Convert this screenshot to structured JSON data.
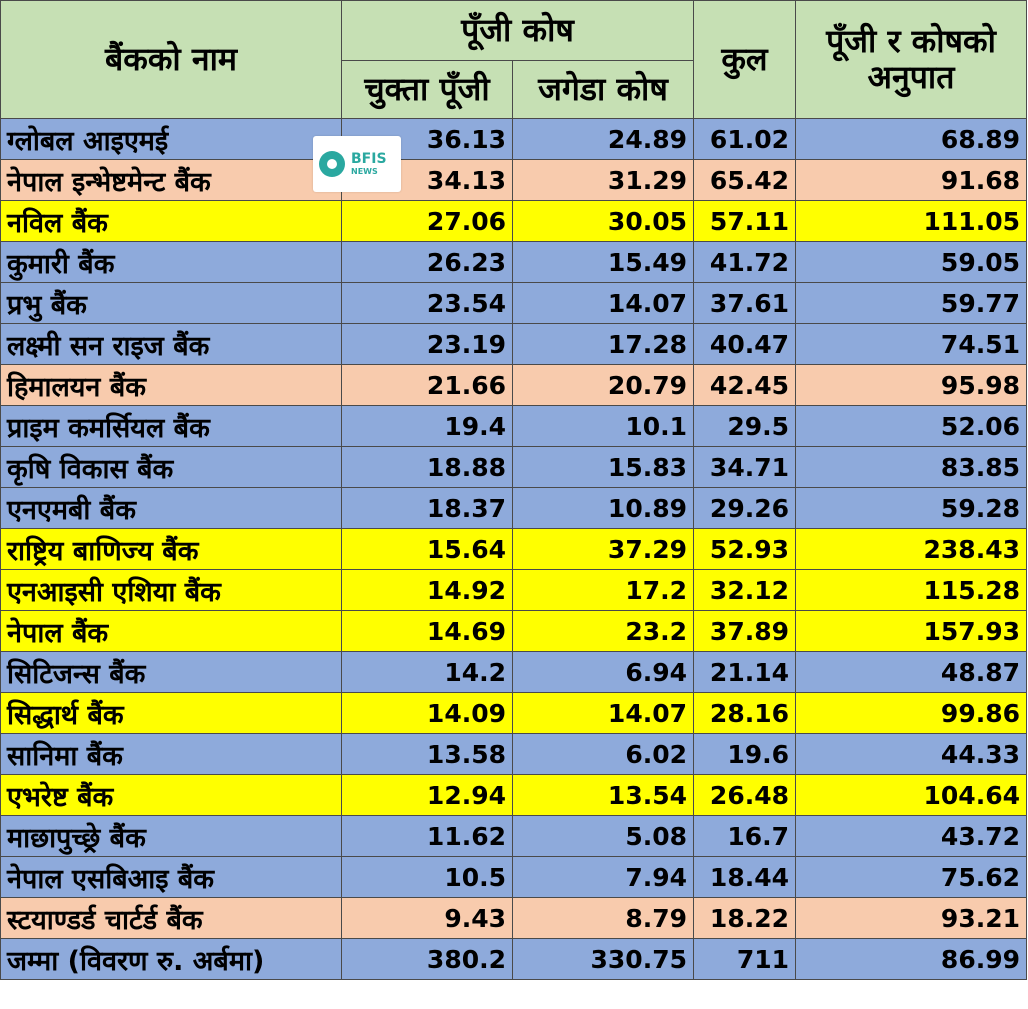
{
  "headers": {
    "name": "बैंकको नाम",
    "capital_fund": "पूँजी कोष",
    "paid_up": "चुक्ता पूँजी",
    "reserve": "जगेडा कोष",
    "total": "कुल",
    "ratio_line1": "पूँजी र कोषको",
    "ratio_line2": "अनुपात"
  },
  "rows": [
    {
      "name": "ग्लोबल आइएमई",
      "paid": "36.13",
      "reserve": "24.89",
      "total": "61.02",
      "ratio": "68.89",
      "color": "blue"
    },
    {
      "name": "नेपाल इन्भेष्टमेन्ट बैंक",
      "paid": "34.13",
      "reserve": "31.29",
      "total": "65.42",
      "ratio": "91.68",
      "color": "peach"
    },
    {
      "name": "नविल बैंक",
      "paid": "27.06",
      "reserve": "30.05",
      "total": "57.11",
      "ratio": "111.05",
      "color": "yellow"
    },
    {
      "name": "कुमारी बैंक",
      "paid": "26.23",
      "reserve": "15.49",
      "total": "41.72",
      "ratio": "59.05",
      "color": "blue"
    },
    {
      "name": "प्रभु बैंक",
      "paid": "23.54",
      "reserve": "14.07",
      "total": "37.61",
      "ratio": "59.77",
      "color": "blue"
    },
    {
      "name": "लक्ष्मी सन राइज बैंक",
      "paid": "23.19",
      "reserve": "17.28",
      "total": "40.47",
      "ratio": "74.51",
      "color": "blue"
    },
    {
      "name": "हिमालयन बैंक",
      "paid": "21.66",
      "reserve": "20.79",
      "total": "42.45",
      "ratio": "95.98",
      "color": "peach"
    },
    {
      "name": "प्राइम कमर्सियल बैंक",
      "paid": "19.4",
      "reserve": "10.1",
      "total": "29.5",
      "ratio": "52.06",
      "color": "blue"
    },
    {
      "name": "कृषि विकास बैंक",
      "paid": "18.88",
      "reserve": "15.83",
      "total": "34.71",
      "ratio": "83.85",
      "color": "blue"
    },
    {
      "name": "एनएमबी बैंक",
      "paid": "18.37",
      "reserve": "10.89",
      "total": "29.26",
      "ratio": "59.28",
      "color": "blue"
    },
    {
      "name": "राष्ट्रिय बाणिज्य बैंक",
      "paid": "15.64",
      "reserve": "37.29",
      "total": "52.93",
      "ratio": "238.43",
      "color": "yellow"
    },
    {
      "name": "एनआइसी एशिया बैंक",
      "paid": "14.92",
      "reserve": "17.2",
      "total": "32.12",
      "ratio": "115.28",
      "color": "yellow"
    },
    {
      "name": "नेपाल बैंक",
      "paid": "14.69",
      "reserve": "23.2",
      "total": "37.89",
      "ratio": "157.93",
      "color": "yellow"
    },
    {
      "name": "सिटिजन्स बैंक",
      "paid": "14.2",
      "reserve": "6.94",
      "total": "21.14",
      "ratio": "48.87",
      "color": "blue"
    },
    {
      "name": "सिद्धार्थ बैंक",
      "paid": "14.09",
      "reserve": "14.07",
      "total": "28.16",
      "ratio": "99.86",
      "color": "yellow"
    },
    {
      "name": "सानिमा बैंक",
      "paid": "13.58",
      "reserve": "6.02",
      "total": "19.6",
      "ratio": "44.33",
      "color": "blue"
    },
    {
      "name": "एभरेष्ट बैंक",
      "paid": "12.94",
      "reserve": "13.54",
      "total": "26.48",
      "ratio": "104.64",
      "color": "yellow"
    },
    {
      "name": "माछापुच्छ्रे बैंक",
      "paid": "11.62",
      "reserve": "5.08",
      "total": "16.7",
      "ratio": "43.72",
      "color": "blue"
    },
    {
      "name": "नेपाल एसबिआइ बैंक",
      "paid": "10.5",
      "reserve": "7.94",
      "total": "18.44",
      "ratio": "75.62",
      "color": "blue"
    },
    {
      "name": "स्टयाण्डर्ड चार्टर्ड बैंक",
      "paid": "9.43",
      "reserve": "8.79",
      "total": "18.22",
      "ratio": "93.21",
      "color": "peach"
    }
  ],
  "total_row": {
    "name": "जम्मा (विवरण रु. अर्बमा)",
    "paid": "380.2",
    "reserve": "330.75",
    "total": "711",
    "ratio": "86.99"
  },
  "logo": {
    "brand": "BFIS",
    "sub": "NEWS",
    "icon": "bfis-logo-icon"
  },
  "colors": {
    "header": "#c6e0b4",
    "blue": "#8eaadb",
    "peach": "#f8cbad",
    "yellow": "#ffff00"
  }
}
